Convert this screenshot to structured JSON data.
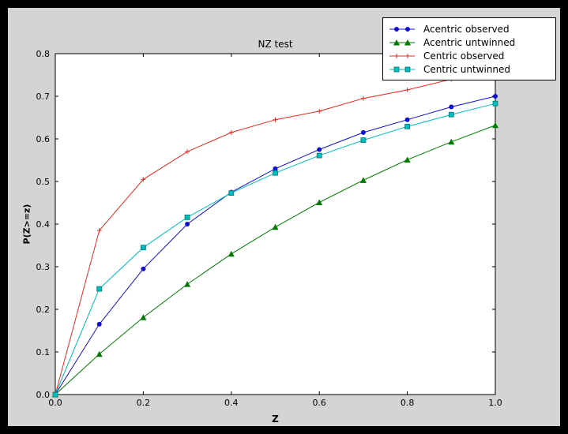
{
  "window": {
    "bg": "#000000"
  },
  "figure": {
    "bg": "#d4d4d4"
  },
  "chart_data": {
    "type": "line",
    "title": "NZ test",
    "xlabel": "Z",
    "ylabel": "P(Z>=z)",
    "xlim": [
      0.0,
      1.0
    ],
    "ylim": [
      0.0,
      0.8
    ],
    "xticks": [
      0.0,
      0.2,
      0.4,
      0.6,
      0.8,
      1.0
    ],
    "yticks": [
      0.0,
      0.1,
      0.2,
      0.3,
      0.4,
      0.5,
      0.6,
      0.7,
      0.8
    ],
    "grid": false,
    "axes_bg": "#ffffff",
    "legend_position": "upper right",
    "x": [
      0.0,
      0.1,
      0.2,
      0.3,
      0.4,
      0.5,
      0.6,
      0.7,
      0.8,
      0.9,
      1.0
    ],
    "series": [
      {
        "name": "Acentric observed",
        "color": "#0f0fd0",
        "marker": "circle",
        "values": [
          0.0,
          0.165,
          0.295,
          0.4,
          0.475,
          0.53,
          0.575,
          0.615,
          0.645,
          0.675,
          0.7
        ]
      },
      {
        "name": "Acentric untwinned",
        "color": "#007a00",
        "marker": "triangle",
        "values": [
          0.0,
          0.095,
          0.181,
          0.259,
          0.33,
          0.393,
          0.451,
          0.503,
          0.551,
          0.593,
          0.632
        ]
      },
      {
        "name": "Centric observed",
        "color": "#e62a21",
        "marker": "plus",
        "values": [
          0.0,
          0.385,
          0.505,
          0.57,
          0.615,
          0.645,
          0.665,
          0.695,
          0.715,
          0.74,
          0.763
        ]
      },
      {
        "name": "Centric untwinned",
        "color": "#00bdbd",
        "marker": "square",
        "values": [
          0.0,
          0.248,
          0.345,
          0.416,
          0.473,
          0.52,
          0.561,
          0.597,
          0.629,
          0.657,
          0.683
        ]
      }
    ]
  }
}
